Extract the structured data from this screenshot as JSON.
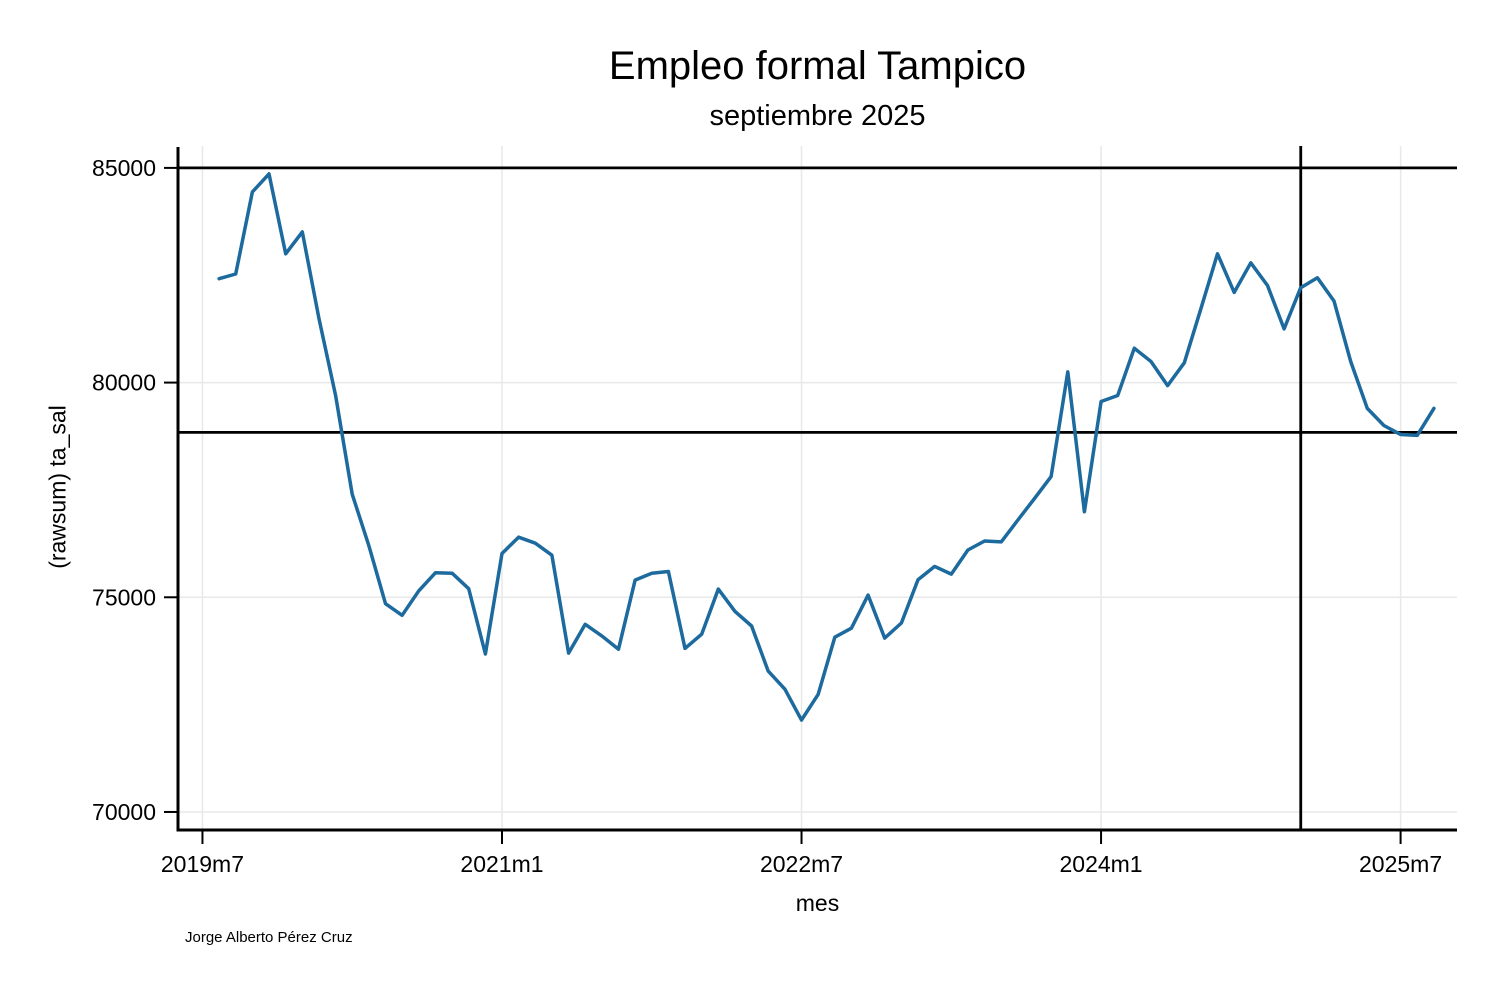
{
  "header": {
    "title": "Empleo formal Tampico",
    "subtitle": "septiembre 2025"
  },
  "footer": {
    "credit": "Jorge Alberto Pérez Cruz"
  },
  "chart_data": {
    "type": "line",
    "title": "Empleo formal Tampico",
    "subtitle": "septiembre 2025",
    "xlabel": "mes",
    "ylabel": "(rawsum) ta_sal",
    "legend": "none",
    "grid": true,
    "series_color": "#1c6a9e",
    "grid_color": "#e8e8e8",
    "axis_color": "#000000",
    "ylim": [
      69580,
      85510
    ],
    "xlim_months": [
      -1.47,
      75.39
    ],
    "start_month_index": 1,
    "yticks": [
      70000,
      75000,
      80000,
      85000
    ],
    "xticks": [
      {
        "label": "2019m7",
        "month_index": 0
      },
      {
        "label": "2021m1",
        "month_index": 18
      },
      {
        "label": "2022m7",
        "month_index": 36
      },
      {
        "label": "2024m1",
        "month_index": 54
      },
      {
        "label": "2025m7",
        "month_index": 72
      }
    ],
    "ref_lines": {
      "hline_values": [
        85000,
        78840
      ],
      "vline_month": "2025m1",
      "vline_month_index": 66
    },
    "categories": [
      "2019m8",
      "2019m9",
      "2019m10",
      "2019m11",
      "2019m12",
      "2020m1",
      "2020m2",
      "2020m3",
      "2020m4",
      "2020m5",
      "2020m6",
      "2020m7",
      "2020m8",
      "2020m9",
      "2020m10",
      "2020m11",
      "2020m12",
      "2021m1",
      "2021m2",
      "2021m3",
      "2021m4",
      "2021m5",
      "2021m6",
      "2021m7",
      "2021m8",
      "2021m9",
      "2021m10",
      "2021m11",
      "2021m12",
      "2022m1",
      "2022m2",
      "2022m3",
      "2022m4",
      "2022m5",
      "2022m6",
      "2022m7",
      "2022m8",
      "2022m9",
      "2022m10",
      "2022m11",
      "2022m12",
      "2023m1",
      "2023m2",
      "2023m3",
      "2023m4",
      "2023m5",
      "2023m6",
      "2023m7",
      "2023m8",
      "2023m9",
      "2023m10",
      "2023m11",
      "2023m12",
      "2024m1",
      "2024m2",
      "2024m3",
      "2024m4",
      "2024m5",
      "2024m6",
      "2024m7",
      "2024m8",
      "2024m9",
      "2024m10",
      "2024m11",
      "2024m12",
      "2025m1",
      "2025m2",
      "2025m3",
      "2025m4",
      "2025m5",
      "2025m6",
      "2025m7",
      "2025m8",
      "2025m9"
    ],
    "values": [
      82420,
      82530,
      84440,
      84860,
      83000,
      83510,
      81500,
      79700,
      77400,
      76200,
      74850,
      74580,
      75150,
      75570,
      75560,
      75200,
      73680,
      76020,
      76400,
      76260,
      75980,
      73700,
      74370,
      74100,
      73790,
      75400,
      75560,
      75600,
      73810,
      74140,
      75190,
      74670,
      74330,
      73280,
      72860,
      72140,
      72740,
      74070,
      74280,
      75050,
      74050,
      74400,
      75410,
      75720,
      75540,
      76100,
      76310,
      76290,
      76800,
      77300,
      77810,
      80250,
      76990,
      79560,
      79700,
      80800,
      80490,
      79930,
      80460,
      81720,
      83000,
      82100,
      82790,
      82260,
      81250,
      82210,
      82440,
      81900,
      80490,
      79400,
      79000,
      78790,
      78770,
      79400
    ]
  }
}
